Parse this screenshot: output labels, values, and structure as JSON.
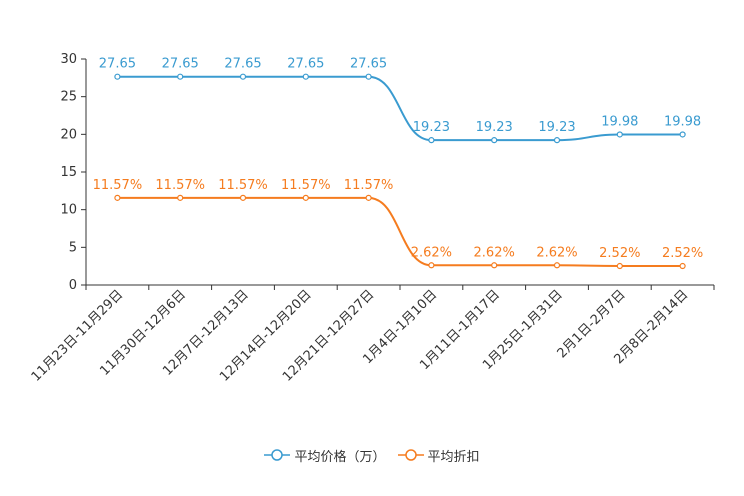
{
  "chart_data": {
    "type": "line",
    "categories": [
      "11月23日-11月29日",
      "11月30日-12月6日",
      "12月7日-12月13日",
      "12月14日-12月20日",
      "12月21日-12月27日",
      "1月4日-1月10日",
      "1月11日-1月17日",
      "1月25日-1月31日",
      "2月1日-2月7日",
      "2月8日-2月14日"
    ],
    "ylim": [
      0,
      30
    ],
    "yticks": [
      0,
      5,
      10,
      15,
      20,
      25,
      30
    ],
    "series": [
      {
        "name": "平均价格（万）",
        "color": "#3a9bd0",
        "values": [
          27.65,
          27.65,
          27.65,
          27.65,
          27.65,
          19.23,
          19.23,
          19.23,
          19.98,
          19.98
        ],
        "labels": [
          "27.65",
          "27.65",
          "27.65",
          "27.65",
          "27.65",
          "19.23",
          "19.23",
          "19.23",
          "19.98",
          "19.98"
        ]
      },
      {
        "name": "平均折扣",
        "color": "#f57c1f",
        "values": [
          11.57,
          11.57,
          11.57,
          11.57,
          11.57,
          2.62,
          2.62,
          2.62,
          2.52,
          2.52
        ],
        "labels": [
          "11.57%",
          "11.57%",
          "11.57%",
          "11.57%",
          "11.57%",
          "2.62%",
          "2.62%",
          "2.62%",
          "2.52%",
          "2.52%"
        ]
      }
    ]
  }
}
